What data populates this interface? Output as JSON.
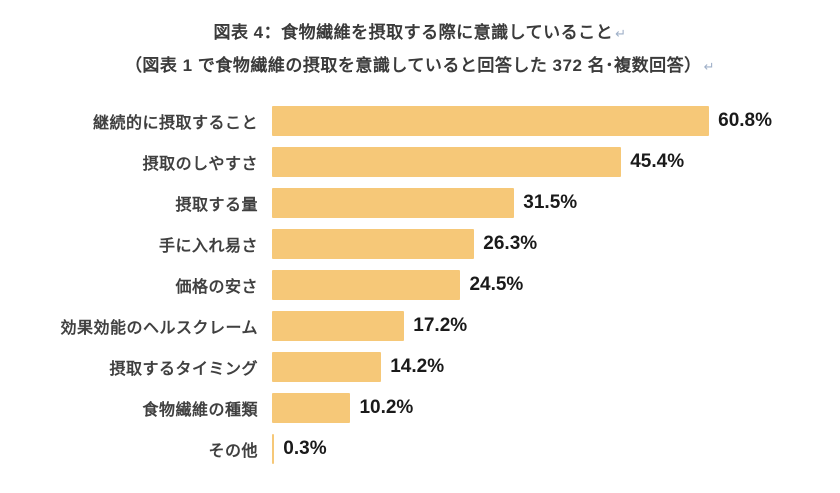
{
  "title": {
    "line1": "図表 4：食物繊維を摂取する際に意識していること",
    "line2": "（図表 1 で食物繊維の摂取を意識していると回答した 372 名･複数回答）",
    "return_mark": "↵"
  },
  "chart_data": {
    "type": "bar",
    "orientation": "horizontal",
    "title": "図表 4：食物繊維を摂取する際に意識していること",
    "subtitle": "（図表 1 で食物繊維の摂取を意識していると回答した 372 名･複数回答）",
    "categories": [
      "継続的に摂取すること",
      "摂取のしやすさ",
      "摂取する量",
      "手に入れ易さ",
      "価格の安さ",
      "効果効能のヘルスクレーム",
      "摂取するタイミング",
      "食物繊維の種類",
      "その他"
    ],
    "values": [
      60.8,
      45.4,
      31.5,
      26.3,
      24.5,
      17.2,
      14.2,
      10.2,
      0.3
    ],
    "value_suffix": "%",
    "xlim": [
      0,
      65
    ],
    "bar_color": "#F6C878",
    "grid": false,
    "legend": false
  }
}
